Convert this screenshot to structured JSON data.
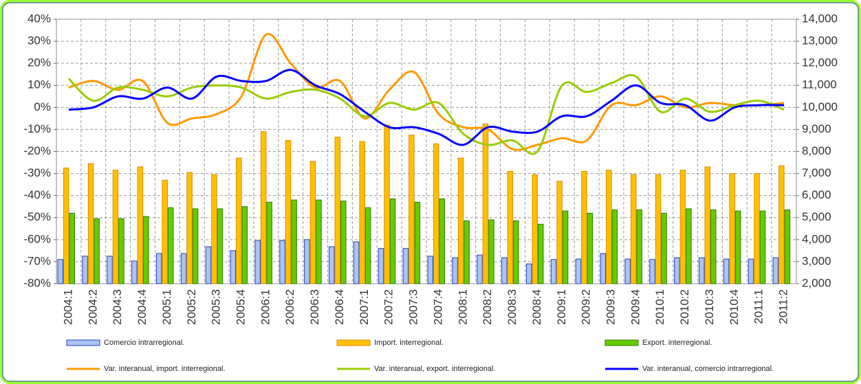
{
  "chart_data": {
    "type": "bar-line",
    "categories": [
      "2004:1",
      "2004:2",
      "2004:3",
      "2004:4",
      "2005:1",
      "2005:2",
      "2005:3",
      "2005:4",
      "2006:1",
      "2006:2",
      "2006:3",
      "2006:4",
      "2007:1",
      "2007:2",
      "2007:3",
      "2007:4",
      "2008:1",
      "2008:2",
      "2008:3",
      "2008:4",
      "2009:1",
      "2009:2",
      "2009:3",
      "2009:4",
      "2010:1",
      "2010:2",
      "2010:3",
      "2010:4",
      "2011:1",
      "2011:2"
    ],
    "series": [
      {
        "name": "Comercio intrarregional.",
        "type": "bar",
        "axis": "y2",
        "color": "#a9c4f5",
        "stroke": "#1f3fbf",
        "values": [
          3100,
          3250,
          3250,
          3030,
          3370,
          3370,
          3680,
          3500,
          3960,
          3960,
          4000,
          3680,
          3900,
          3600,
          3600,
          3250,
          3180,
          3300,
          3180,
          2900,
          3100,
          3120,
          3370,
          3120,
          3100,
          3180,
          3180,
          3120,
          3120,
          3180
        ]
      },
      {
        "name": "Import. interregional.",
        "type": "bar",
        "axis": "y2",
        "color": "#ffc000",
        "stroke": "#e08a00",
        "values": [
          7250,
          7450,
          7150,
          7300,
          6700,
          7050,
          6950,
          7700,
          8900,
          8500,
          7550,
          8650,
          8450,
          9200,
          8750,
          8350,
          7700,
          9250,
          7100,
          6950,
          6650,
          7100,
          7150,
          6950,
          6950,
          7150,
          7300,
          7000,
          7000,
          7350
        ]
      },
      {
        "name": "Export. interregional.",
        "type": "bar",
        "axis": "y2",
        "color": "#66cc00",
        "stroke": "#2e7d00",
        "values": [
          5200,
          4950,
          4950,
          5050,
          5450,
          5400,
          5400,
          5500,
          5700,
          5800,
          5800,
          5750,
          5450,
          5850,
          5700,
          5850,
          4850,
          4900,
          4850,
          4700,
          5300,
          5200,
          5350,
          5350,
          5200,
          5400,
          5350,
          5300,
          5300,
          5350
        ]
      },
      {
        "name": "Var. interanual, import. interregional.",
        "type": "line",
        "axis": "y",
        "color": "#ff9900",
        "values": [
          9,
          12,
          8,
          12,
          -7,
          -5,
          -3,
          5,
          33,
          20,
          9,
          12,
          -5,
          8,
          16,
          -3,
          -9,
          -10,
          -19,
          -17,
          -14,
          -15,
          1,
          1,
          5,
          0,
          2,
          1,
          1,
          2
        ]
      },
      {
        "name": "Var. interanual, export. interregional.",
        "type": "line",
        "axis": "y",
        "color": "#99cc00",
        "values": [
          13,
          3,
          9,
          8,
          5,
          9,
          10,
          9,
          4,
          7,
          8,
          4,
          -4,
          2,
          -1,
          2,
          -12,
          -17,
          -15,
          -20,
          10,
          7,
          11,
          14,
          -2,
          4,
          -2,
          1,
          3,
          -1
        ]
      },
      {
        "name": "Var. interanual, comercio intrarregional.",
        "type": "line",
        "axis": "y",
        "color": "#0000ff",
        "values": [
          -1,
          0,
          5,
          4,
          9,
          4,
          14,
          12,
          12,
          17,
          10,
          6,
          -2,
          -9,
          -9,
          -12,
          -17,
          -9,
          -11,
          -11,
          -4,
          -4,
          3,
          10,
          2,
          1,
          -6,
          0,
          1,
          1
        ]
      }
    ],
    "ylim": [
      -80,
      40
    ],
    "yticks": [
      {
        "value": -80,
        "label": "-80%"
      },
      {
        "value": -70,
        "label": "-70%"
      },
      {
        "value": -60,
        "label": "-60%"
      },
      {
        "value": -50,
        "label": "-50%"
      },
      {
        "value": -40,
        "label": "-40%"
      },
      {
        "value": -30,
        "label": "-30%"
      },
      {
        "value": -20,
        "label": "-20%"
      },
      {
        "value": -10,
        "label": "-10%"
      },
      {
        "value": 0,
        "label": "0%"
      },
      {
        "value": 10,
        "label": "10%"
      },
      {
        "value": 20,
        "label": "20%"
      },
      {
        "value": 30,
        "label": "30%"
      },
      {
        "value": 40,
        "label": "40%"
      }
    ],
    "y2lim": [
      2000,
      14000
    ],
    "y2ticks": [
      {
        "value": 2000,
        "label": "2,000"
      },
      {
        "value": 3000,
        "label": "3,000"
      },
      {
        "value": 4000,
        "label": "4,000"
      },
      {
        "value": 5000,
        "label": "5,000"
      },
      {
        "value": 6000,
        "label": "6,000"
      },
      {
        "value": 7000,
        "label": "7,000"
      },
      {
        "value": 8000,
        "label": "8,000"
      },
      {
        "value": 9000,
        "label": "9,000"
      },
      {
        "value": 10000,
        "label": "10,000"
      },
      {
        "value": 11000,
        "label": "11,000"
      },
      {
        "value": 12000,
        "label": "12,000"
      },
      {
        "value": 13000,
        "label": "13,000"
      },
      {
        "value": 14000,
        "label": "14,000"
      }
    ],
    "grid": true,
    "legend": "bottom"
  }
}
